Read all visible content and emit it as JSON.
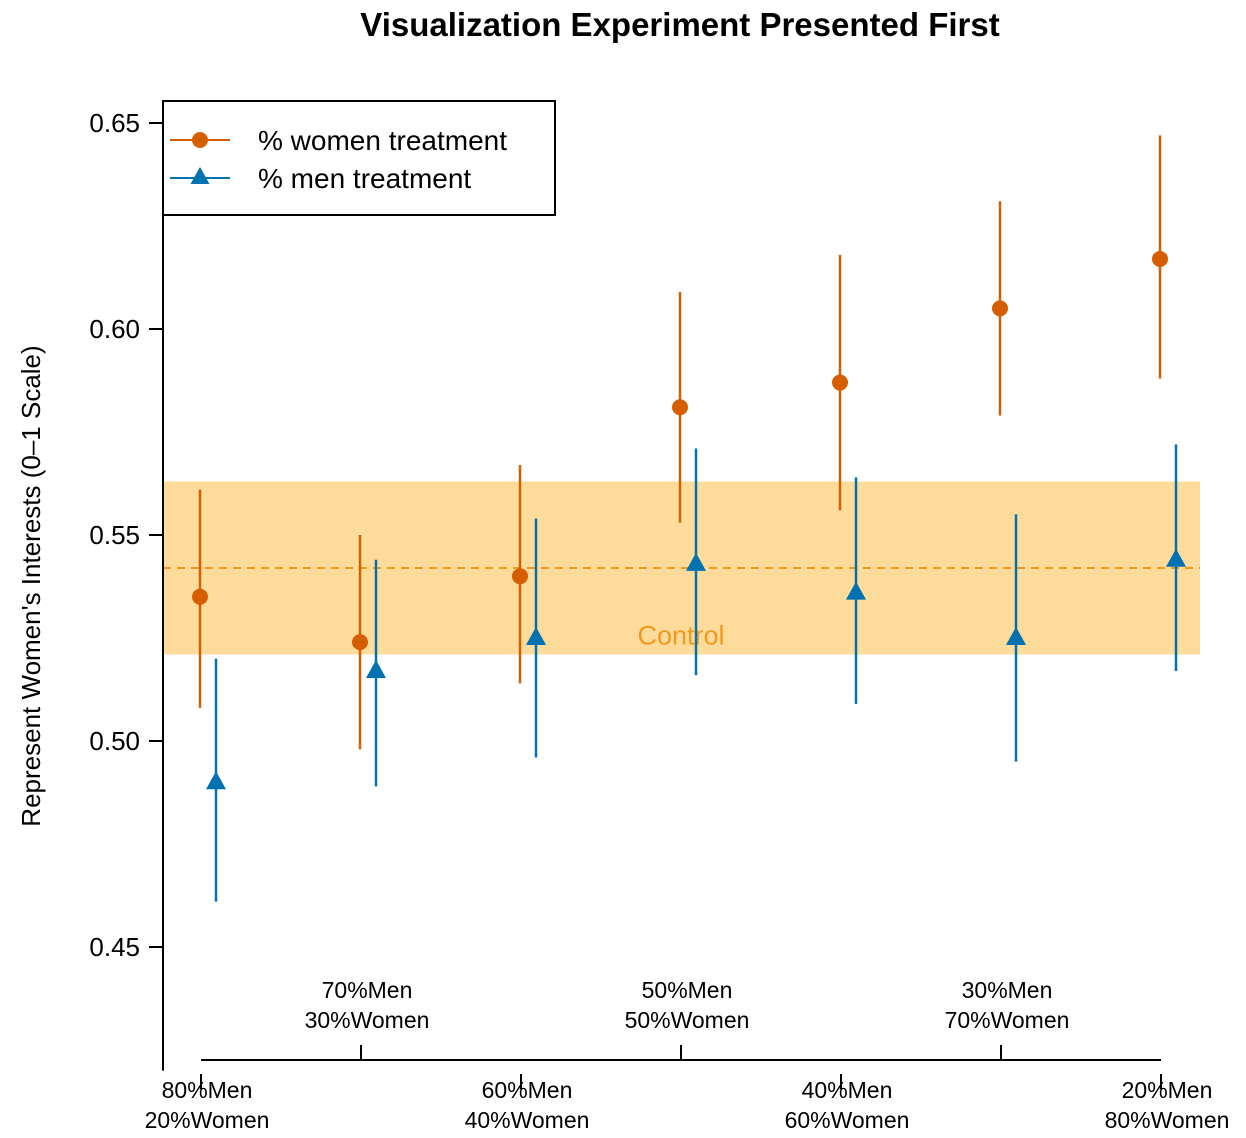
{
  "chart_data": {
    "type": "scatter",
    "title": "Visualization Experiment Presented First",
    "xlabel": "",
    "ylabel": "Represent Women's Interests (0–1 Scale)",
    "ylim": [
      0.42,
      0.66
    ],
    "yticks": [
      "0.45",
      "0.50",
      "0.55",
      "0.60",
      "0.65"
    ],
    "categories": [
      [
        "80%Men",
        "20%Women"
      ],
      [
        "70%Men",
        "30%Women"
      ],
      [
        "60%Men",
        "40%Women"
      ],
      [
        "50%Men",
        "50%Women"
      ],
      [
        "40%Men",
        "60%Women"
      ],
      [
        "30%Men",
        "70%Women"
      ],
      [
        "20%Men",
        "80%Women"
      ]
    ],
    "category_label_rows": [
      "low",
      "high",
      "low",
      "high",
      "low",
      "high",
      "low"
    ],
    "grid": false,
    "legend_position": "top-left",
    "series": [
      {
        "name": "% women treatment",
        "marker": "circle",
        "color": "#D55E00",
        "values": [
          0.535,
          0.524,
          0.54,
          0.581,
          0.587,
          0.605,
          0.617
        ],
        "ci_low": [
          0.508,
          0.498,
          0.514,
          0.553,
          0.556,
          0.579,
          0.588
        ],
        "ci_high": [
          0.561,
          0.55,
          0.567,
          0.609,
          0.618,
          0.631,
          0.647
        ]
      },
      {
        "name": "% men treatment",
        "marker": "triangle",
        "color": "#0072B2",
        "values": [
          0.49,
          0.517,
          0.525,
          0.543,
          0.536,
          0.525,
          0.544
        ],
        "ci_low": [
          0.461,
          0.489,
          0.496,
          0.516,
          0.509,
          0.495,
          0.517
        ],
        "ci_high": [
          0.52,
          0.544,
          0.554,
          0.571,
          0.564,
          0.555,
          0.572
        ]
      }
    ],
    "control": {
      "label": "Control",
      "mean": 0.542,
      "ci_low": 0.521,
      "ci_high": 0.563,
      "band_color": "#FDDB9A",
      "line_color": "#F39A1E",
      "text_color": "#F39A1E"
    }
  }
}
